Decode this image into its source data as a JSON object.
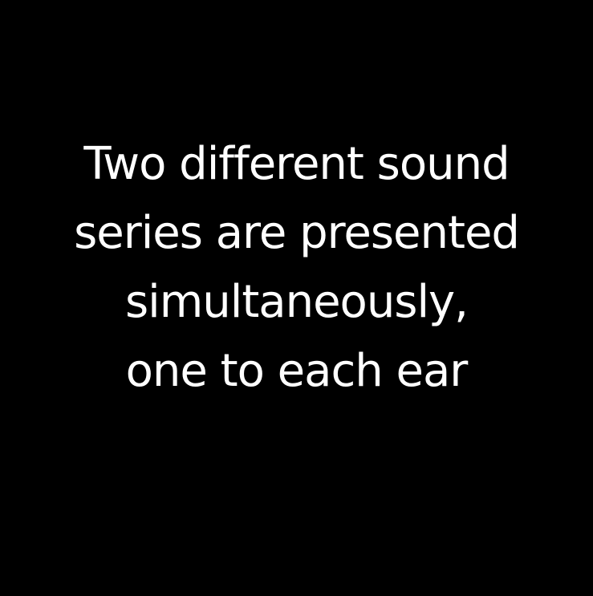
{
  "slide": {
    "background_color": "#000000",
    "text_color": "#ffffff",
    "lines": [
      "Two different sound",
      "series are presented",
      "simultaneously,",
      "one to each ear"
    ]
  }
}
